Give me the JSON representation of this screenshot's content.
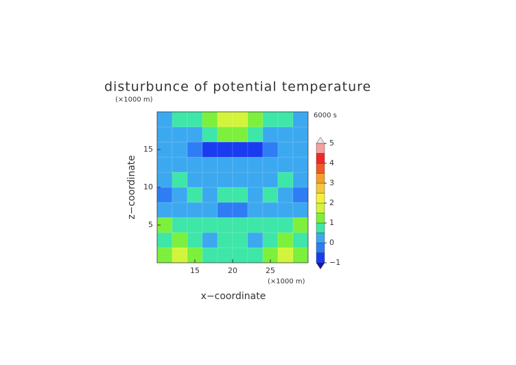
{
  "chart_data": {
    "type": "contour",
    "title": "disturbunce of potential temperature",
    "subtitle": "6000 s",
    "x_label": "x−coordinate",
    "y_label": "z−coordinate",
    "x_unit": "(×1000 m)",
    "y_unit": "(×1000 m)",
    "x": [
      11,
      13,
      15,
      17,
      19,
      21,
      23,
      25,
      27,
      29
    ],
    "z": [
      1,
      3,
      5,
      7,
      9,
      11,
      13,
      15,
      17,
      19
    ],
    "values": [
      [
        1.0,
        1.5,
        1.0,
        0.8,
        0.5,
        0.5,
        0.8,
        1.0,
        1.5,
        1.0
      ],
      [
        0.8,
        1.2,
        0.5,
        0.3,
        0.8,
        0.8,
        0.3,
        0.5,
        1.2,
        0.8
      ],
      [
        1.2,
        0.8,
        0.5,
        0.8,
        0.5,
        0.5,
        0.8,
        0.5,
        0.8,
        1.2
      ],
      [
        0.2,
        0.1,
        0.3,
        0.0,
        -0.4,
        -0.4,
        0.0,
        0.3,
        0.1,
        0.2
      ],
      [
        -0.3,
        0.3,
        0.5,
        0.2,
        0.8,
        0.8,
        0.2,
        0.5,
        0.3,
        -0.3
      ],
      [
        0.2,
        0.5,
        0.3,
        0.2,
        0.0,
        0.0,
        0.2,
        0.3,
        0.5,
        0.2
      ],
      [
        0.3,
        0.2,
        0.2,
        0.0,
        0.0,
        0.0,
        0.0,
        0.2,
        0.2,
        0.3
      ],
      [
        0.2,
        0.0,
        -0.3,
        -0.6,
        -0.9,
        -0.9,
        -0.6,
        -0.3,
        0.0,
        0.2
      ],
      [
        0.2,
        0.2,
        0.3,
        0.8,
        1.2,
        1.2,
        0.8,
        0.3,
        0.2,
        0.2
      ],
      [
        0.3,
        0.5,
        0.8,
        1.2,
        1.5,
        1.5,
        1.2,
        0.8,
        0.5,
        0.3
      ]
    ],
    "xlim": [
      10,
      30
    ],
    "xticks": [
      15,
      20,
      25
    ],
    "ylim": [
      0,
      20
    ],
    "yticks": [
      5,
      10,
      15
    ],
    "levels": [
      -1,
      -0.5,
      0,
      0.5,
      1,
      1.5,
      2,
      2.5,
      3,
      3.5,
      4,
      4.5,
      5
    ],
    "colors": [
      "#1a3cf0",
      "#2e7df5",
      "#3ca8f0",
      "#3ee6a8",
      "#7cf03c",
      "#d2f53c",
      "#f5f03c",
      "#f5c83c",
      "#f5a028",
      "#f05a28",
      "#f02828",
      "#f5a0a0"
    ],
    "under_color": "#1414b4",
    "over_color": "#f3e3e3",
    "colorbar_ticks": [
      {
        "value": -1,
        "label": "−1"
      },
      0,
      1,
      2,
      3,
      4,
      5
    ]
  }
}
